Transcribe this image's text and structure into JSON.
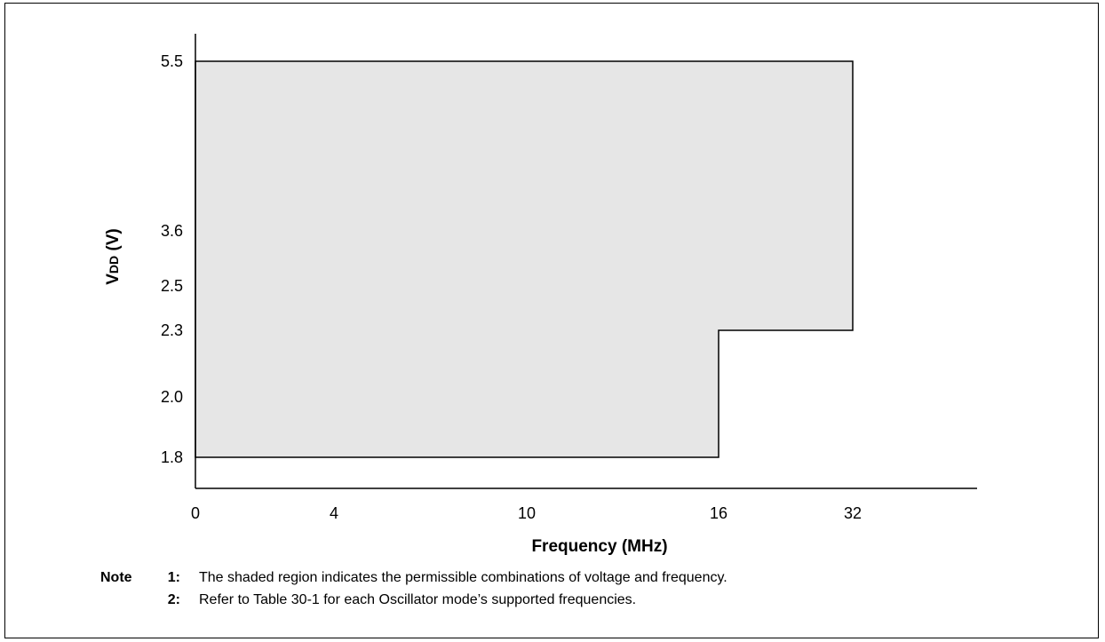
{
  "chart_data": {
    "type": "area",
    "title": "",
    "xlabel": "Frequency (MHz)",
    "ylabel": {
      "main": "V",
      "sub": "DD",
      "suffix": " (V)"
    },
    "x_ticks": [
      {
        "value": 0,
        "label": "0"
      },
      {
        "value": 4,
        "label": "4"
      },
      {
        "value": 10,
        "label": "10"
      },
      {
        "value": 16,
        "label": "16"
      },
      {
        "value": 32,
        "label": "32"
      }
    ],
    "y_ticks": [
      {
        "value": 1.8,
        "label": "1.8"
      },
      {
        "value": 2.0,
        "label": "2.0"
      },
      {
        "value": 2.3,
        "label": "2.3"
      },
      {
        "value": 2.5,
        "label": "2.5"
      },
      {
        "value": 3.6,
        "label": "3.6"
      },
      {
        "value": 5.5,
        "label": "5.5"
      }
    ],
    "region": {
      "fill": "#e6e6e6",
      "outline": "#000000",
      "points": [
        {
          "x": 0,
          "y": 1.8
        },
        {
          "x": 16,
          "y": 1.8
        },
        {
          "x": 16,
          "y": 2.3
        },
        {
          "x": 32,
          "y": 2.3
        },
        {
          "x": 32,
          "y": 5.5
        },
        {
          "x": 0,
          "y": 5.5
        }
      ]
    },
    "grid": false
  },
  "notes": {
    "prefix": "Note",
    "items": [
      {
        "number": "1:",
        "text": "The shaded region indicates the permissible combinations of voltage and frequency."
      },
      {
        "number": "2:",
        "text": "Refer to Table 30-1 for each Oscillator mode’s supported frequencies."
      }
    ]
  }
}
